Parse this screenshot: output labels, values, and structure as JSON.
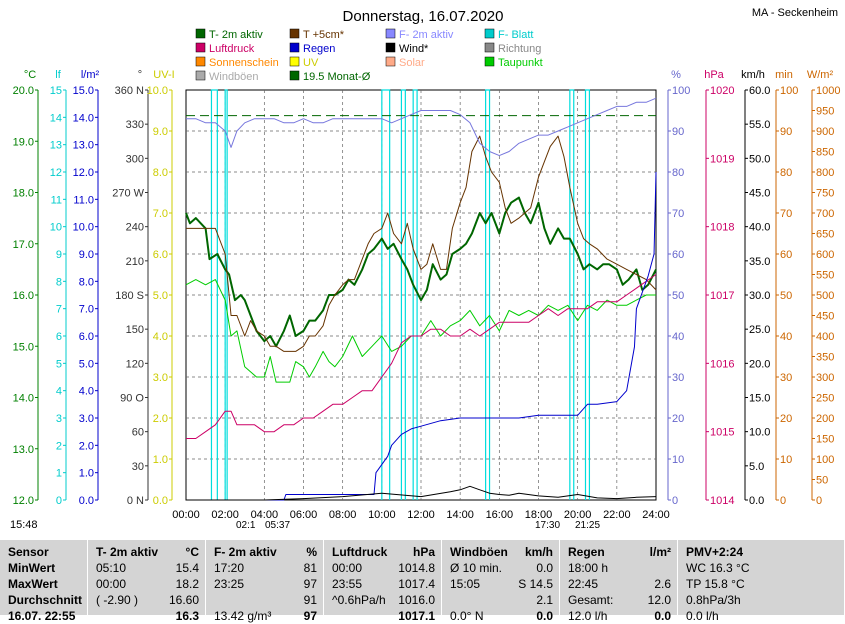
{
  "chart_data": {
    "type": "line",
    "title": "Donnerstag, 16.07.2020",
    "station": "MA - Seckenheim",
    "x_ticks": [
      "00:00",
      "02:00",
      "04:00",
      "06:00",
      "08:00",
      "10:00",
      "12:00",
      "14:00",
      "16:00",
      "18:00",
      "20:00",
      "22:00",
      "24:00"
    ],
    "axes": [
      {
        "unit": "°C",
        "color": "#008000",
        "ticks": [
          "12.0",
          "13.0",
          "14.0",
          "15.0",
          "16.0",
          "17.0",
          "18.0",
          "19.0",
          "20.0"
        ],
        "range": [
          12,
          20
        ]
      },
      {
        "unit": "lf",
        "color": "#00cccc",
        "ticks": [
          "0",
          "1",
          "2",
          "3",
          "4",
          "5",
          "6",
          "7",
          "8",
          "9",
          "10",
          "11",
          "12",
          "13",
          "14",
          "15"
        ],
        "range": [
          0,
          15
        ]
      },
      {
        "unit": "l/m²",
        "color": "#0000cc",
        "ticks": [
          "0.0",
          "1.0",
          "2.0",
          "3.0",
          "4.0",
          "5.0",
          "6.0",
          "7.0",
          "8.0",
          "9.0",
          "10.0",
          "11.0",
          "12.0",
          "13.0",
          "14.0",
          "15.0"
        ],
        "range": [
          0,
          15
        ]
      },
      {
        "unit": "°",
        "color": "#333333",
        "ticks": [
          "0 N",
          "30",
          "60",
          "90 O",
          "120",
          "150",
          "180 S",
          "210",
          "240",
          "270 W",
          "300",
          "330",
          "360 N"
        ],
        "range": [
          0,
          360
        ]
      },
      {
        "unit": "UV-I",
        "color": "#cccc00",
        "ticks": [
          "0.0",
          "1.0",
          "2.0",
          "3.0",
          "4.0",
          "5.0",
          "6.0",
          "7.0",
          "8.0",
          "9.0",
          "10.0"
        ],
        "range": [
          0,
          10
        ]
      },
      {
        "unit": "%",
        "color": "#6666cc",
        "ticks": [
          "0",
          "10",
          "20",
          "30",
          "40",
          "50",
          "60",
          "70",
          "80",
          "90",
          "100"
        ],
        "range": [
          0,
          100
        ]
      },
      {
        "unit": "hPa",
        "color": "#cc0066",
        "ticks": [
          "1014",
          "1015",
          "1016",
          "1017",
          "1018",
          "1019",
          "1020"
        ],
        "range": [
          1014,
          1020
        ]
      },
      {
        "unit": "km/h",
        "color": "#000000",
        "ticks": [
          "0.0",
          "5.0",
          "10.0",
          "15.0",
          "20.0",
          "25.0",
          "30.0",
          "35.0",
          "40.0",
          "45.0",
          "50.0",
          "55.0",
          "60.0"
        ],
        "range": [
          0,
          60
        ]
      },
      {
        "unit": "min",
        "color": "#cc6600",
        "ticks": [
          "0",
          "10",
          "20",
          "30",
          "40",
          "50",
          "60",
          "70",
          "80",
          "90",
          "100"
        ],
        "range": [
          0,
          100
        ]
      },
      {
        "unit": "W/m²",
        "color": "#cc6600",
        "ticks": [
          "0",
          "50",
          "100",
          "150",
          "200",
          "250",
          "300",
          "350",
          "400",
          "450",
          "500",
          "550",
          "600",
          "650",
          "700",
          "750",
          "800",
          "850",
          "900",
          "950",
          "1000"
        ],
        "range": [
          0,
          1000
        ]
      }
    ],
    "legend": [
      {
        "label": "T- 2m aktiv",
        "color": "#006600"
      },
      {
        "label": "T +5cm*",
        "color": "#663300"
      },
      {
        "label": "F- 2m aktiv",
        "color": "#8888ff"
      },
      {
        "label": "F- Blatt",
        "color": "#00cccc"
      },
      {
        "label": "Luftdruck",
        "color": "#cc0066"
      },
      {
        "label": "Regen",
        "color": "#0000cc"
      },
      {
        "label": "Wind*",
        "color": "#000000"
      },
      {
        "label": "Richtung",
        "color": "#888888"
      },
      {
        "label": "Sonnenschein",
        "color": "#ff8800"
      },
      {
        "label": "UV",
        "color": "#ffff00"
      },
      {
        "label": "Solar",
        "color": "#ffaa88"
      },
      {
        "label": "Taupunkt",
        "color": "#00cc00"
      },
      {
        "label": "Windböen",
        "color": "#aaaaaa"
      },
      {
        "label": "19.5 Monat-Ø",
        "color": "#006600"
      }
    ],
    "monthly_avg": 19.5,
    "series": [
      {
        "name": "T- 2m aktiv",
        "axis": 0,
        "color": "#006600",
        "width": 2,
        "x": [
          0,
          0.2,
          0.5,
          1,
          1.2,
          1.6,
          2,
          2.2,
          2.5,
          2.8,
          3,
          3.3,
          3.6,
          4,
          4.3,
          4.6,
          5,
          5.3,
          5.6,
          6,
          6.3,
          6.6,
          7,
          7.3,
          7.6,
          8,
          8.3,
          8.6,
          9,
          9.3,
          9.6,
          10,
          10.3,
          10.6,
          11,
          11.3,
          11.6,
          12,
          12.3,
          12.6,
          13,
          13.3,
          13.6,
          14,
          14.3,
          14.6,
          15,
          15.3,
          15.6,
          16,
          16.3,
          16.6,
          17,
          17.3,
          17.6,
          18,
          18.3,
          18.6,
          19,
          19.3,
          19.6,
          20,
          20.3,
          20.6,
          21,
          21.3,
          21.6,
          22,
          22.3,
          22.6,
          23,
          23.3,
          23.6,
          24
        ],
        "y": [
          17.6,
          17.4,
          17.5,
          17.3,
          16.7,
          16.8,
          16.5,
          16.4,
          15.9,
          16.0,
          15.9,
          15.6,
          15.3,
          15.1,
          15.2,
          15.0,
          15.3,
          15.6,
          15.2,
          15.3,
          15.5,
          15.5,
          15.7,
          16.0,
          16.0,
          16.1,
          16.3,
          16.2,
          16.5,
          16.8,
          16.9,
          17.1,
          16.9,
          17.0,
          16.7,
          16.5,
          16.2,
          15.9,
          16.1,
          16.6,
          16.3,
          16.4,
          16.8,
          16.9,
          17.0,
          17.2,
          17.6,
          17.4,
          17.6,
          17.2,
          17.6,
          17.8,
          17.9,
          17.6,
          17.4,
          17.8,
          17.3,
          17.0,
          17.3,
          17.1,
          17.1,
          16.8,
          16.5,
          16.6,
          16.5,
          16.6,
          16.6,
          16.5,
          16.2,
          16.3,
          16.5,
          16.1,
          16.2,
          16.5
        ]
      },
      {
        "name": "T +5cm*",
        "axis": 0,
        "color": "#663300",
        "width": 1,
        "x": [
          0,
          0.5,
          1,
          1.5,
          2,
          2.3,
          2.6,
          3,
          3.3,
          3.6,
          4,
          4.3,
          4.6,
          5,
          5.3,
          5.6,
          6,
          6.3,
          6.6,
          7,
          7.3,
          7.6,
          8,
          8.3,
          8.6,
          9,
          9.3,
          9.6,
          10,
          10.3,
          10.6,
          11,
          11.3,
          11.6,
          12,
          12.3,
          12.6,
          13,
          13.3,
          13.6,
          14,
          14.3,
          14.6,
          15,
          15.3,
          15.6,
          16,
          16.3,
          16.6,
          17,
          17.3,
          17.6,
          18,
          18.3,
          18.6,
          19,
          19.3,
          19.6,
          20,
          20.3,
          20.6,
          21,
          21.5,
          22,
          22.5,
          23,
          23.5,
          24
        ],
        "y": [
          17.3,
          17.3,
          17.3,
          17.3,
          16.8,
          15.6,
          15.6,
          15.2,
          15.5,
          15.3,
          15.2,
          15.0,
          15.0,
          14.9,
          14.9,
          14.9,
          15.0,
          15.2,
          15.2,
          15.4,
          15.8,
          16.0,
          16.2,
          16.3,
          16.3,
          16.7,
          17.0,
          17.2,
          17.3,
          17.6,
          17.2,
          17.0,
          17.4,
          16.9,
          16.5,
          16.6,
          17.0,
          16.5,
          16.5,
          17.3,
          17.8,
          18.1,
          18.8,
          19.1,
          18.7,
          18.4,
          18.2,
          17.7,
          17.4,
          17.5,
          17.6,
          17.7,
          18.3,
          18.6,
          18.9,
          19.1,
          18.7,
          18.1,
          17.4,
          17.1,
          17.0,
          16.9,
          16.7,
          16.6,
          16.5,
          16.4,
          16.3,
          16.1
        ]
      },
      {
        "name": "Taupunkt",
        "axis": 0,
        "color": "#00cc00",
        "width": 1,
        "x": [
          0,
          0.5,
          1,
          1.5,
          2,
          2.3,
          2.6,
          3,
          3.3,
          3.6,
          4,
          4.3,
          4.6,
          5,
          5.3,
          5.6,
          6,
          6.3,
          6.6,
          7,
          7.3,
          7.6,
          8,
          8.5,
          9,
          9.5,
          10,
          10.5,
          11,
          11.5,
          12,
          12.5,
          13,
          13.5,
          14,
          14.5,
          15,
          15.5,
          16,
          16.5,
          17,
          17.5,
          18,
          18.5,
          19,
          19.5,
          20,
          20.5,
          21,
          21.5,
          22,
          22.5,
          23,
          23.5,
          24
        ],
        "y": [
          16.2,
          16.3,
          16.2,
          16.3,
          15.9,
          15.2,
          15.3,
          14.6,
          14.5,
          14.4,
          14.4,
          14.8,
          14.3,
          14.3,
          14.3,
          14.7,
          14.6,
          14.4,
          14.6,
          14.9,
          14.7,
          14.6,
          14.8,
          15.2,
          14.8,
          15.0,
          15.2,
          14.9,
          15.0,
          15.2,
          15.2,
          15.5,
          15.2,
          15.4,
          15.5,
          15.7,
          15.4,
          15.6,
          15.3,
          15.7,
          15.6,
          15.7,
          15.6,
          15.8,
          15.7,
          15.8,
          15.5,
          15.8,
          15.7,
          15.9,
          15.8,
          15.8,
          15.9,
          16.0,
          16.0
        ]
      },
      {
        "name": "Luftdruck",
        "axis": 6,
        "color": "#cc0066",
        "width": 1,
        "x": [
          0,
          0.5,
          1,
          1.5,
          2,
          2.3,
          2.6,
          3,
          3.5,
          4,
          4.5,
          5,
          5.5,
          6,
          6.5,
          7,
          7.5,
          8,
          8.5,
          9,
          9.5,
          10,
          10.5,
          11,
          11.5,
          12,
          12.5,
          13,
          13.5,
          14,
          14.5,
          15,
          15.5,
          16,
          16.5,
          17,
          17.5,
          18,
          18.5,
          19,
          19.5,
          20,
          20.5,
          21,
          21.5,
          22,
          22.5,
          23,
          23.5,
          24
        ],
        "y": [
          1014.9,
          1014.9,
          1015.0,
          1015.1,
          1015.3,
          1015.3,
          1015.1,
          1015.1,
          1015.1,
          1015.0,
          1015.0,
          1015.1,
          1015.1,
          1015.2,
          1015.2,
          1015.3,
          1015.4,
          1015.4,
          1015.5,
          1015.6,
          1015.6,
          1015.8,
          1016.0,
          1016.3,
          1016.4,
          1016.4,
          1016.5,
          1016.5,
          1016.4,
          1016.4,
          1016.5,
          1016.4,
          1016.5,
          1016.6,
          1016.6,
          1016.6,
          1016.6,
          1016.7,
          1016.8,
          1016.7,
          1016.8,
          1016.8,
          1016.8,
          1016.9,
          1016.9,
          1016.9,
          1017.0,
          1017.1,
          1017.2,
          1017.3
        ]
      },
      {
        "name": "F- 2m aktiv",
        "axis": 5,
        "color": "#7777dd",
        "width": 1,
        "x": [
          0,
          0.5,
          1,
          1.5,
          2,
          2.3,
          2.6,
          3,
          3.5,
          4,
          4.5,
          5,
          5.5,
          6,
          6.5,
          7,
          7.5,
          8,
          8.5,
          9,
          9.5,
          10,
          10.5,
          11,
          11.5,
          12,
          12.5,
          13,
          13.5,
          14,
          14.5,
          15,
          15.5,
          16,
          16.5,
          17,
          17.5,
          18,
          18.5,
          19,
          19.5,
          20,
          20.5,
          21,
          21.5,
          22,
          22.5,
          23,
          23.5,
          24
        ],
        "y": [
          93,
          93,
          92,
          92,
          90,
          86,
          90,
          92,
          93,
          93,
          93,
          92,
          92,
          93,
          92,
          92,
          93,
          93,
          93,
          93,
          93,
          93,
          92,
          93,
          94,
          95,
          95,
          95,
          95,
          94,
          92,
          87,
          85,
          84,
          85,
          87,
          88,
          89,
          89,
          90,
          91,
          92,
          93,
          94,
          95,
          96,
          96,
          97,
          97,
          98
        ]
      },
      {
        "name": "Regen",
        "axis": 2,
        "color": "#0000cc",
        "width": 1,
        "x": [
          0,
          5,
          5.1,
          9.6,
          9.7,
          10.3,
          10.5,
          11.0,
          11.5,
          12,
          13,
          14,
          15,
          16,
          17,
          18,
          19,
          20,
          20.5,
          21,
          22,
          22.5,
          22.9,
          23,
          23.3,
          23.6,
          23.9,
          24
        ],
        "y": [
          0,
          0,
          0.2,
          0.2,
          1.0,
          1.6,
          2.0,
          2.4,
          2.6,
          2.7,
          2.9,
          3.0,
          3.0,
          3.0,
          3.0,
          3.1,
          3.1,
          3.1,
          3.5,
          3.5,
          3.6,
          4.0,
          5.6,
          7.0,
          7.6,
          8.2,
          9.0,
          12.0
        ]
      },
      {
        "name": "Windböen",
        "axis": 7,
        "color": "#000000",
        "width": 1,
        "x": [
          0,
          2,
          4,
          6,
          8,
          10,
          12,
          13.5,
          14,
          14.5,
          15,
          15.5,
          16,
          16.5,
          17,
          18,
          19,
          20,
          21,
          22,
          23,
          24
        ],
        "y": [
          0,
          0,
          0,
          0.2,
          0.5,
          1.0,
          0.5,
          1.2,
          1.5,
          2.0,
          1.5,
          1.0,
          0.8,
          0.7,
          1.0,
          0.6,
          0.4,
          0.8,
          0.3,
          0.2,
          0.4,
          0.5
        ]
      }
    ],
    "leaf_wetness_spikes": [
      {
        "from": 1.3,
        "to": 1.6
      },
      {
        "from": 2.0,
        "to": 2.1
      },
      {
        "from": 10.0,
        "to": 10.4
      },
      {
        "from": 11.0,
        "to": 11.2
      },
      {
        "from": 11.6,
        "to": 11.8
      },
      {
        "from": 15.3,
        "to": 15.5
      },
      {
        "from": 19.6,
        "to": 19.8
      },
      {
        "from": 20.4,
        "to": 20.6
      }
    ],
    "markers": {
      "sunrise": "05:37",
      "sunset": "21:25",
      "left_time": "15:48",
      "solar_noon": "02:1",
      "solar_low": "17:30"
    }
  },
  "stats": {
    "columns": [
      {
        "title": "Sensor",
        "unit": "",
        "rows": [
          "MinWert",
          "MaxWert",
          "Durchschnitt",
          "16.07. 22:55"
        ]
      },
      {
        "title": "T- 2m aktiv",
        "unit": "°C",
        "rows": [
          [
            "05:10",
            "15.4"
          ],
          [
            "00:00",
            "18.2"
          ],
          [
            "( -2.90 )",
            "16.60"
          ],
          [
            "",
            "16.3"
          ]
        ]
      },
      {
        "title": "F- 2m aktiv",
        "unit": "%",
        "rows": [
          [
            "17:20",
            "81"
          ],
          [
            "23:25",
            "97"
          ],
          [
            "",
            "91"
          ],
          [
            "13.42 g/m³",
            "97"
          ]
        ]
      },
      {
        "title": "Luftdruck",
        "unit": "hPa",
        "rows": [
          [
            "00:00",
            "1014.8"
          ],
          [
            "23:55",
            "1017.4"
          ],
          [
            "^0.6hPa/h",
            "1016.0"
          ],
          [
            "",
            "1017.1"
          ]
        ]
      },
      {
        "title": "Windböen",
        "unit": "km/h",
        "rows": [
          [
            "Ø 10 min.",
            "0.0"
          ],
          [
            "15:05",
            "S 14.5"
          ],
          [
            "",
            "2.1"
          ],
          [
            "0.0° N",
            "0.0"
          ]
        ]
      },
      {
        "title": "Regen",
        "unit": "l/m²",
        "rows": [
          [
            "18:00 h",
            ""
          ],
          [
            "22:45",
            "2.6"
          ],
          [
            "Gesamt:",
            "12.0"
          ],
          [
            "12.0 l/h",
            "0.0"
          ]
        ]
      },
      {
        "title": "PMV+2:24",
        "unit": "",
        "rows": [
          "WC 16.3 °C",
          "TP 15.8 °C",
          "0.8hPa/3h",
          "0.0 l/h"
        ]
      }
    ]
  }
}
